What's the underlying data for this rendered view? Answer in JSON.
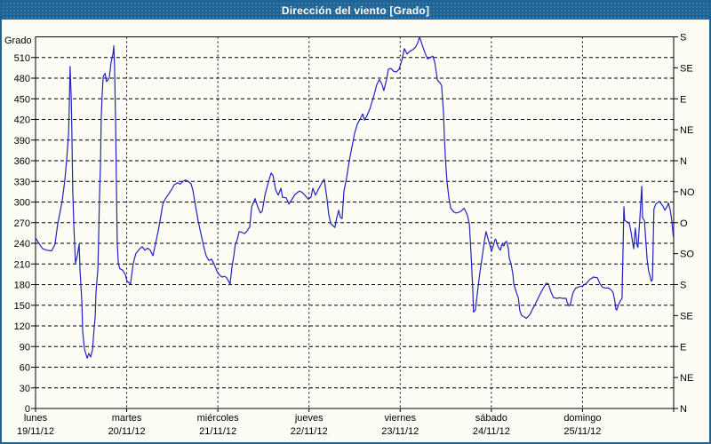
{
  "window": {
    "title": "Dirección del viento [Grado]"
  },
  "colors": {
    "title_bar": "#1e6496",
    "background": "#fdfdf5",
    "line": "#2222c0",
    "grid": "#000000",
    "text": "#000000"
  },
  "chart_data": {
    "type": "line",
    "title": "Dirección del viento [Grado]",
    "ylabel": "Grado",
    "y_min": 0,
    "y_max": 540,
    "y_step": 30,
    "grid": "dashed",
    "y_ticks": [
      0,
      30,
      60,
      90,
      120,
      150,
      180,
      210,
      240,
      270,
      300,
      330,
      360,
      390,
      420,
      450,
      480,
      510
    ],
    "compass_ticks": [
      {
        "value": 0,
        "label": "N"
      },
      {
        "value": 45,
        "label": "NE"
      },
      {
        "value": 90,
        "label": "E"
      },
      {
        "value": 135,
        "label": "SE"
      },
      {
        "value": 180,
        "label": "S"
      },
      {
        "value": 225,
        "label": "SO"
      },
      {
        "value": 270,
        "label": "O"
      },
      {
        "value": 315,
        "label": "NO"
      },
      {
        "value": 360,
        "label": "N"
      },
      {
        "value": 405,
        "label": "NE"
      },
      {
        "value": 450,
        "label": "E"
      },
      {
        "value": 495,
        "label": "SE"
      },
      {
        "value": 540,
        "label": "S"
      }
    ],
    "days": [
      {
        "name": "lunes",
        "date": "19/11/12"
      },
      {
        "name": "martes",
        "date": "20/11/12"
      },
      {
        "name": "miércoles",
        "date": "21/11/12"
      },
      {
        "name": "jueves",
        "date": "22/11/12"
      },
      {
        "name": "viernes",
        "date": "23/11/12"
      },
      {
        "name": "sábado",
        "date": "24/11/12"
      },
      {
        "name": "domingo",
        "date": "25/11/12"
      }
    ],
    "x_total_hours": 168,
    "series": [
      {
        "name": "Dirección del viento",
        "color": "#2222c0",
        "points": [
          [
            0,
            248
          ],
          [
            0.9,
            240
          ],
          [
            1.9,
            232
          ],
          [
            3,
            230
          ],
          [
            4.2,
            229
          ],
          [
            5.1,
            238
          ],
          [
            5.8,
            267
          ],
          [
            7,
            301
          ],
          [
            7.7,
            331
          ],
          [
            8.2,
            361
          ],
          [
            8.7,
            400
          ],
          [
            8.9,
            443
          ],
          [
            9.1,
            497
          ],
          [
            9.4,
            449
          ],
          [
            9.6,
            391
          ],
          [
            9.8,
            314
          ],
          [
            10.1,
            262
          ],
          [
            10.5,
            211
          ],
          [
            11,
            222
          ],
          [
            11.5,
            239
          ],
          [
            11.7,
            202
          ],
          [
            12.2,
            155
          ],
          [
            12.4,
            112
          ],
          [
            12.9,
            86
          ],
          [
            13.6,
            73
          ],
          [
            14,
            80
          ],
          [
            14.5,
            75
          ],
          [
            15,
            85
          ],
          [
            15.4,
            115
          ],
          [
            15.7,
            133
          ],
          [
            15.9,
            168
          ],
          [
            16.4,
            202
          ],
          [
            16.6,
            241
          ],
          [
            16.8,
            301
          ],
          [
            17.1,
            357
          ],
          [
            17.3,
            422
          ],
          [
            17.5,
            452
          ],
          [
            17.8,
            482
          ],
          [
            18.3,
            487
          ],
          [
            18.7,
            475
          ],
          [
            19.4,
            480
          ],
          [
            19.9,
            503
          ],
          [
            20.4,
            516
          ],
          [
            20.6,
            527
          ],
          [
            20.8,
            499
          ],
          [
            21.1,
            404
          ],
          [
            21.3,
            327
          ],
          [
            21.5,
            241
          ],
          [
            21.8,
            210
          ],
          [
            22.2,
            203
          ],
          [
            22.9,
            201
          ],
          [
            23.6,
            195
          ],
          [
            24.1,
            185
          ],
          [
            25,
            181
          ],
          [
            25.7,
            210
          ],
          [
            26.4,
            225
          ],
          [
            27.4,
            232
          ],
          [
            28.1,
            235
          ],
          [
            28.8,
            230
          ],
          [
            29.5,
            233
          ],
          [
            30.2,
            230
          ],
          [
            30.9,
            222
          ],
          [
            31.6,
            240
          ],
          [
            32.3,
            258
          ],
          [
            33,
            280
          ],
          [
            33.5,
            297
          ],
          [
            34.2,
            305
          ],
          [
            35.1,
            312
          ],
          [
            35.8,
            318
          ],
          [
            36.5,
            325
          ],
          [
            37.4,
            328
          ],
          [
            38.1,
            326
          ],
          [
            38.8,
            330
          ],
          [
            39.5,
            332
          ],
          [
            40.2,
            330
          ],
          [
            40.9,
            327
          ],
          [
            41.4,
            318
          ],
          [
            42.1,
            295
          ],
          [
            42.8,
            273
          ],
          [
            43.5,
            255
          ],
          [
            44.2,
            237
          ],
          [
            44.9,
            222
          ],
          [
            45.6,
            215
          ],
          [
            46.3,
            217
          ],
          [
            47,
            210
          ],
          [
            47.7,
            200
          ],
          [
            48.4,
            194
          ],
          [
            49.1,
            191
          ],
          [
            49.8,
            192
          ],
          [
            50.3,
            190
          ],
          [
            51,
            183
          ],
          [
            51.2,
            180
          ],
          [
            51.7,
            205
          ],
          [
            52.2,
            222
          ],
          [
            52.6,
            239
          ],
          [
            53.1,
            245
          ],
          [
            53.6,
            257
          ],
          [
            54.3,
            256
          ],
          [
            55,
            254
          ],
          [
            55.7,
            258
          ],
          [
            56.4,
            264
          ],
          [
            56.9,
            293
          ],
          [
            57.8,
            305
          ],
          [
            58.5,
            293
          ],
          [
            59.2,
            284
          ],
          [
            59.7,
            287
          ],
          [
            60.4,
            310
          ],
          [
            61.3,
            329
          ],
          [
            62,
            342
          ],
          [
            62.5,
            339
          ],
          [
            63.2,
            318
          ],
          [
            63.9,
            310
          ],
          [
            64.6,
            320
          ],
          [
            65,
            307
          ],
          [
            66,
            306
          ],
          [
            66.7,
            297
          ],
          [
            67.4,
            303
          ],
          [
            68.3,
            311
          ],
          [
            69.5,
            316
          ],
          [
            70.2,
            314
          ],
          [
            70.9,
            310
          ],
          [
            71.8,
            304
          ],
          [
            72.5,
            307
          ],
          [
            73,
            320
          ],
          [
            73.7,
            310
          ],
          [
            74.4,
            318
          ],
          [
            75.3,
            327
          ],
          [
            76,
            333
          ],
          [
            76.7,
            306
          ],
          [
            77.2,
            282
          ],
          [
            77.7,
            269
          ],
          [
            78.4,
            265
          ],
          [
            78.8,
            263
          ],
          [
            79.3,
            277
          ],
          [
            79.8,
            288
          ],
          [
            80.2,
            278
          ],
          [
            80.7,
            276
          ],
          [
            81.2,
            316
          ],
          [
            81.9,
            335
          ],
          [
            82.6,
            360
          ],
          [
            83.3,
            380
          ],
          [
            84,
            400
          ],
          [
            84.7,
            413
          ],
          [
            85.4,
            420
          ],
          [
            86.1,
            428
          ],
          [
            86.6,
            419
          ],
          [
            87.3,
            426
          ],
          [
            88,
            435
          ],
          [
            88.7,
            448
          ],
          [
            89.1,
            455
          ],
          [
            89.8,
            470
          ],
          [
            90.5,
            478
          ],
          [
            91.2,
            471
          ],
          [
            91.7,
            462
          ],
          [
            92.4,
            478
          ],
          [
            92.9,
            493
          ],
          [
            93.6,
            494
          ],
          [
            94.3,
            490
          ],
          [
            95,
            489
          ],
          [
            95.7,
            493
          ],
          [
            96.4,
            505
          ],
          [
            97.1,
            523
          ],
          [
            97.8,
            515
          ],
          [
            98.5,
            519
          ],
          [
            99.2,
            521
          ],
          [
            99.9,
            524
          ],
          [
            100.6,
            531
          ],
          [
            101.1,
            540
          ],
          [
            101.8,
            528
          ],
          [
            102.5,
            517
          ],
          [
            103.2,
            508
          ],
          [
            103.9,
            510
          ],
          [
            104.6,
            512
          ],
          [
            105.1,
            503
          ],
          [
            105.8,
            477
          ],
          [
            106.5,
            473
          ],
          [
            106.9,
            469
          ],
          [
            107.4,
            430
          ],
          [
            107.6,
            398
          ],
          [
            107.9,
            365
          ],
          [
            108.3,
            330
          ],
          [
            108.8,
            307
          ],
          [
            109.3,
            291
          ],
          [
            110,
            286
          ],
          [
            110.7,
            284
          ],
          [
            111.4,
            285
          ],
          [
            112.1,
            287
          ],
          [
            112.8,
            291
          ],
          [
            113.2,
            287
          ],
          [
            113.7,
            281
          ],
          [
            114.2,
            268
          ],
          [
            114.6,
            230
          ],
          [
            115.1,
            175
          ],
          [
            115.3,
            140
          ],
          [
            115.8,
            143
          ],
          [
            116.5,
            176
          ],
          [
            117,
            198
          ],
          [
            117.5,
            217
          ],
          [
            118.2,
            245
          ],
          [
            118.6,
            257
          ],
          [
            118.9,
            251
          ],
          [
            119.3,
            243
          ],
          [
            119.8,
            234
          ],
          [
            120,
            228
          ],
          [
            120.5,
            236
          ],
          [
            121,
            246
          ],
          [
            121.2,
            245
          ],
          [
            121.7,
            236
          ],
          [
            122.1,
            232
          ],
          [
            122.4,
            230
          ],
          [
            122.8,
            239
          ],
          [
            123.3,
            236
          ],
          [
            123.6,
            241
          ],
          [
            124,
            243
          ],
          [
            124.5,
            232
          ],
          [
            124.7,
            219
          ],
          [
            125.2,
            210
          ],
          [
            125.7,
            194
          ],
          [
            125.9,
            181
          ],
          [
            126.4,
            172
          ],
          [
            126.8,
            165
          ],
          [
            127.1,
            161
          ],
          [
            127.5,
            142
          ],
          [
            128,
            135
          ],
          [
            128.7,
            133
          ],
          [
            129.2,
            131
          ],
          [
            129.9,
            135
          ],
          [
            130.3,
            138
          ],
          [
            130.6,
            142
          ],
          [
            131.5,
            151
          ],
          [
            132.2,
            159
          ],
          [
            132.9,
            167
          ],
          [
            133.8,
            176
          ],
          [
            134.5,
            182
          ],
          [
            135,
            181
          ],
          [
            135.7,
            169
          ],
          [
            136.4,
            161
          ],
          [
            137.3,
            160
          ],
          [
            138,
            161
          ],
          [
            138.7,
            160
          ],
          [
            139.7,
            160
          ],
          [
            139.9,
            155
          ],
          [
            140.4,
            149
          ],
          [
            140.8,
            151
          ],
          [
            141.1,
            159
          ],
          [
            141.5,
            168
          ],
          [
            142.2,
            175
          ],
          [
            143.2,
            177
          ],
          [
            144,
            178
          ],
          [
            145.1,
            182
          ],
          [
            145.8,
            187
          ],
          [
            146.9,
            191
          ],
          [
            147.9,
            190
          ],
          [
            148.6,
            181
          ],
          [
            149.3,
            176
          ],
          [
            150.2,
            175
          ],
          [
            150.9,
            175
          ],
          [
            151.6,
            172
          ],
          [
            152.1,
            168
          ],
          [
            152.6,
            153
          ],
          [
            152.8,
            144
          ],
          [
            153,
            143
          ],
          [
            153.5,
            151
          ],
          [
            154,
            157
          ],
          [
            154.4,
            160
          ],
          [
            154.9,
            293
          ],
          [
            155.1,
            273
          ],
          [
            155.8,
            271
          ],
          [
            156.3,
            269
          ],
          [
            156.8,
            256
          ],
          [
            157.2,
            241
          ],
          [
            157.5,
            232
          ],
          [
            157.9,
            262
          ],
          [
            158.4,
            236
          ],
          [
            158.6,
            234
          ],
          [
            159.1,
            277
          ],
          [
            159.6,
            323
          ],
          [
            159.8,
            277
          ],
          [
            160.3,
            273
          ],
          [
            160.7,
            241
          ],
          [
            161,
            217
          ],
          [
            161.4,
            200
          ],
          [
            161.9,
            190
          ],
          [
            162.1,
            185
          ],
          [
            162.4,
            187
          ],
          [
            162.8,
            290
          ],
          [
            163.3,
            297
          ],
          [
            164.2,
            301
          ],
          [
            164.5,
            299
          ],
          [
            165.2,
            294
          ],
          [
            165.7,
            288
          ],
          [
            166.4,
            295
          ],
          [
            166.6,
            299
          ],
          [
            167.1,
            288
          ],
          [
            167.5,
            273
          ],
          [
            167.9,
            249
          ],
          [
            168,
            262
          ]
        ]
      }
    ]
  }
}
